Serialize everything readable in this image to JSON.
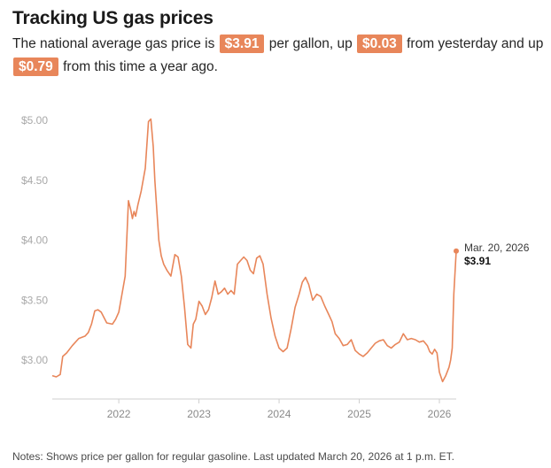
{
  "title": "Tracking US gas prices",
  "subtitle": {
    "part1": "The national average gas price is",
    "price": "$3.91",
    "part2": "per gallon, up",
    "day_change": "$0.03",
    "part3": "from yesterday and up",
    "year_change": "$0.79",
    "part4": "from this time a year ago."
  },
  "note": "Notes: Shows price per gallon for regular gasoline. Last updated March 20, 2026 at 1 p.m. ET.",
  "annotation": {
    "date": "Mar. 20, 2026",
    "value": "$3.91"
  },
  "colors": {
    "line": "#e8865a",
    "badge": "#e8865a",
    "axis": "#cfcfcf",
    "grid_label": "#a8a8a8"
  },
  "chart_data": {
    "type": "line",
    "title": "Tracking US gas prices",
    "xlabel": "",
    "ylabel": "",
    "xlim": [
      2021.17,
      2026.21
    ],
    "ylim": [
      2.75,
      5.05
    ],
    "grid": false,
    "yticks": [
      3.0,
      3.5,
      4.0,
      4.5,
      5.0
    ],
    "ytick_labels": [
      "$3.00",
      "$3.50",
      "$4.00",
      "$4.50",
      "$5.00"
    ],
    "xticks": [
      2022,
      2023,
      2024,
      2025,
      2026
    ],
    "xtick_labels": [
      "2022",
      "2023",
      "2024",
      "2025",
      "2026"
    ],
    "series": [
      {
        "name": "Regular gasoline price per gallon",
        "x": [
          2021.17,
          2021.22,
          2021.27,
          2021.3,
          2021.35,
          2021.42,
          2021.5,
          2021.58,
          2021.62,
          2021.66,
          2021.7,
          2021.74,
          2021.78,
          2021.85,
          2021.92,
          2021.96,
          2022.0,
          2022.04,
          2022.08,
          2022.12,
          2022.15,
          2022.17,
          2022.19,
          2022.21,
          2022.24,
          2022.28,
          2022.33,
          2022.37,
          2022.4,
          2022.43,
          2022.45,
          2022.47,
          2022.5,
          2022.53,
          2022.56,
          2022.6,
          2022.65,
          2022.7,
          2022.74,
          2022.78,
          2022.82,
          2022.86,
          2022.9,
          2022.93,
          2022.96,
          2023.0,
          2023.04,
          2023.08,
          2023.12,
          2023.16,
          2023.2,
          2023.24,
          2023.28,
          2023.32,
          2023.36,
          2023.4,
          2023.44,
          2023.48,
          2023.52,
          2023.56,
          2023.6,
          2023.64,
          2023.68,
          2023.72,
          2023.76,
          2023.8,
          2023.85,
          2023.9,
          2023.95,
          2024.0,
          2024.05,
          2024.1,
          2024.15,
          2024.2,
          2024.25,
          2024.29,
          2024.33,
          2024.37,
          2024.42,
          2024.47,
          2024.52,
          2024.57,
          2024.62,
          2024.66,
          2024.7,
          2024.75,
          2024.8,
          2024.85,
          2024.9,
          2024.95,
          2025.0,
          2025.05,
          2025.1,
          2025.15,
          2025.2,
          2025.25,
          2025.3,
          2025.35,
          2025.4,
          2025.45,
          2025.5,
          2025.55,
          2025.6,
          2025.65,
          2025.7,
          2025.75,
          2025.8,
          2025.85,
          2025.88,
          2025.91,
          2025.94,
          2025.97,
          2026.0,
          2026.04,
          2026.08,
          2026.12,
          2026.14,
          2026.16,
          2026.18,
          2026.21
        ],
        "values": [
          2.87,
          2.86,
          2.88,
          3.03,
          3.06,
          3.12,
          3.18,
          3.2,
          3.23,
          3.3,
          3.41,
          3.42,
          3.4,
          3.31,
          3.3,
          3.34,
          3.4,
          3.55,
          3.7,
          4.33,
          4.25,
          4.18,
          4.24,
          4.2,
          4.3,
          4.41,
          4.6,
          4.99,
          5.01,
          4.78,
          4.5,
          4.3,
          4.0,
          3.87,
          3.8,
          3.75,
          3.7,
          3.88,
          3.86,
          3.7,
          3.44,
          3.13,
          3.1,
          3.3,
          3.34,
          3.49,
          3.45,
          3.38,
          3.42,
          3.52,
          3.66,
          3.55,
          3.57,
          3.6,
          3.55,
          3.58,
          3.55,
          3.8,
          3.83,
          3.86,
          3.83,
          3.75,
          3.72,
          3.85,
          3.87,
          3.8,
          3.55,
          3.35,
          3.2,
          3.1,
          3.07,
          3.1,
          3.26,
          3.44,
          3.55,
          3.65,
          3.69,
          3.63,
          3.5,
          3.55,
          3.53,
          3.45,
          3.38,
          3.32,
          3.22,
          3.18,
          3.12,
          3.13,
          3.17,
          3.08,
          3.05,
          3.03,
          3.06,
          3.1,
          3.14,
          3.16,
          3.17,
          3.12,
          3.1,
          3.13,
          3.15,
          3.22,
          3.17,
          3.18,
          3.17,
          3.15,
          3.16,
          3.12,
          3.07,
          3.05,
          3.09,
          3.06,
          2.9,
          2.82,
          2.87,
          2.94,
          3.0,
          3.1,
          3.55,
          3.91
        ]
      }
    ]
  }
}
